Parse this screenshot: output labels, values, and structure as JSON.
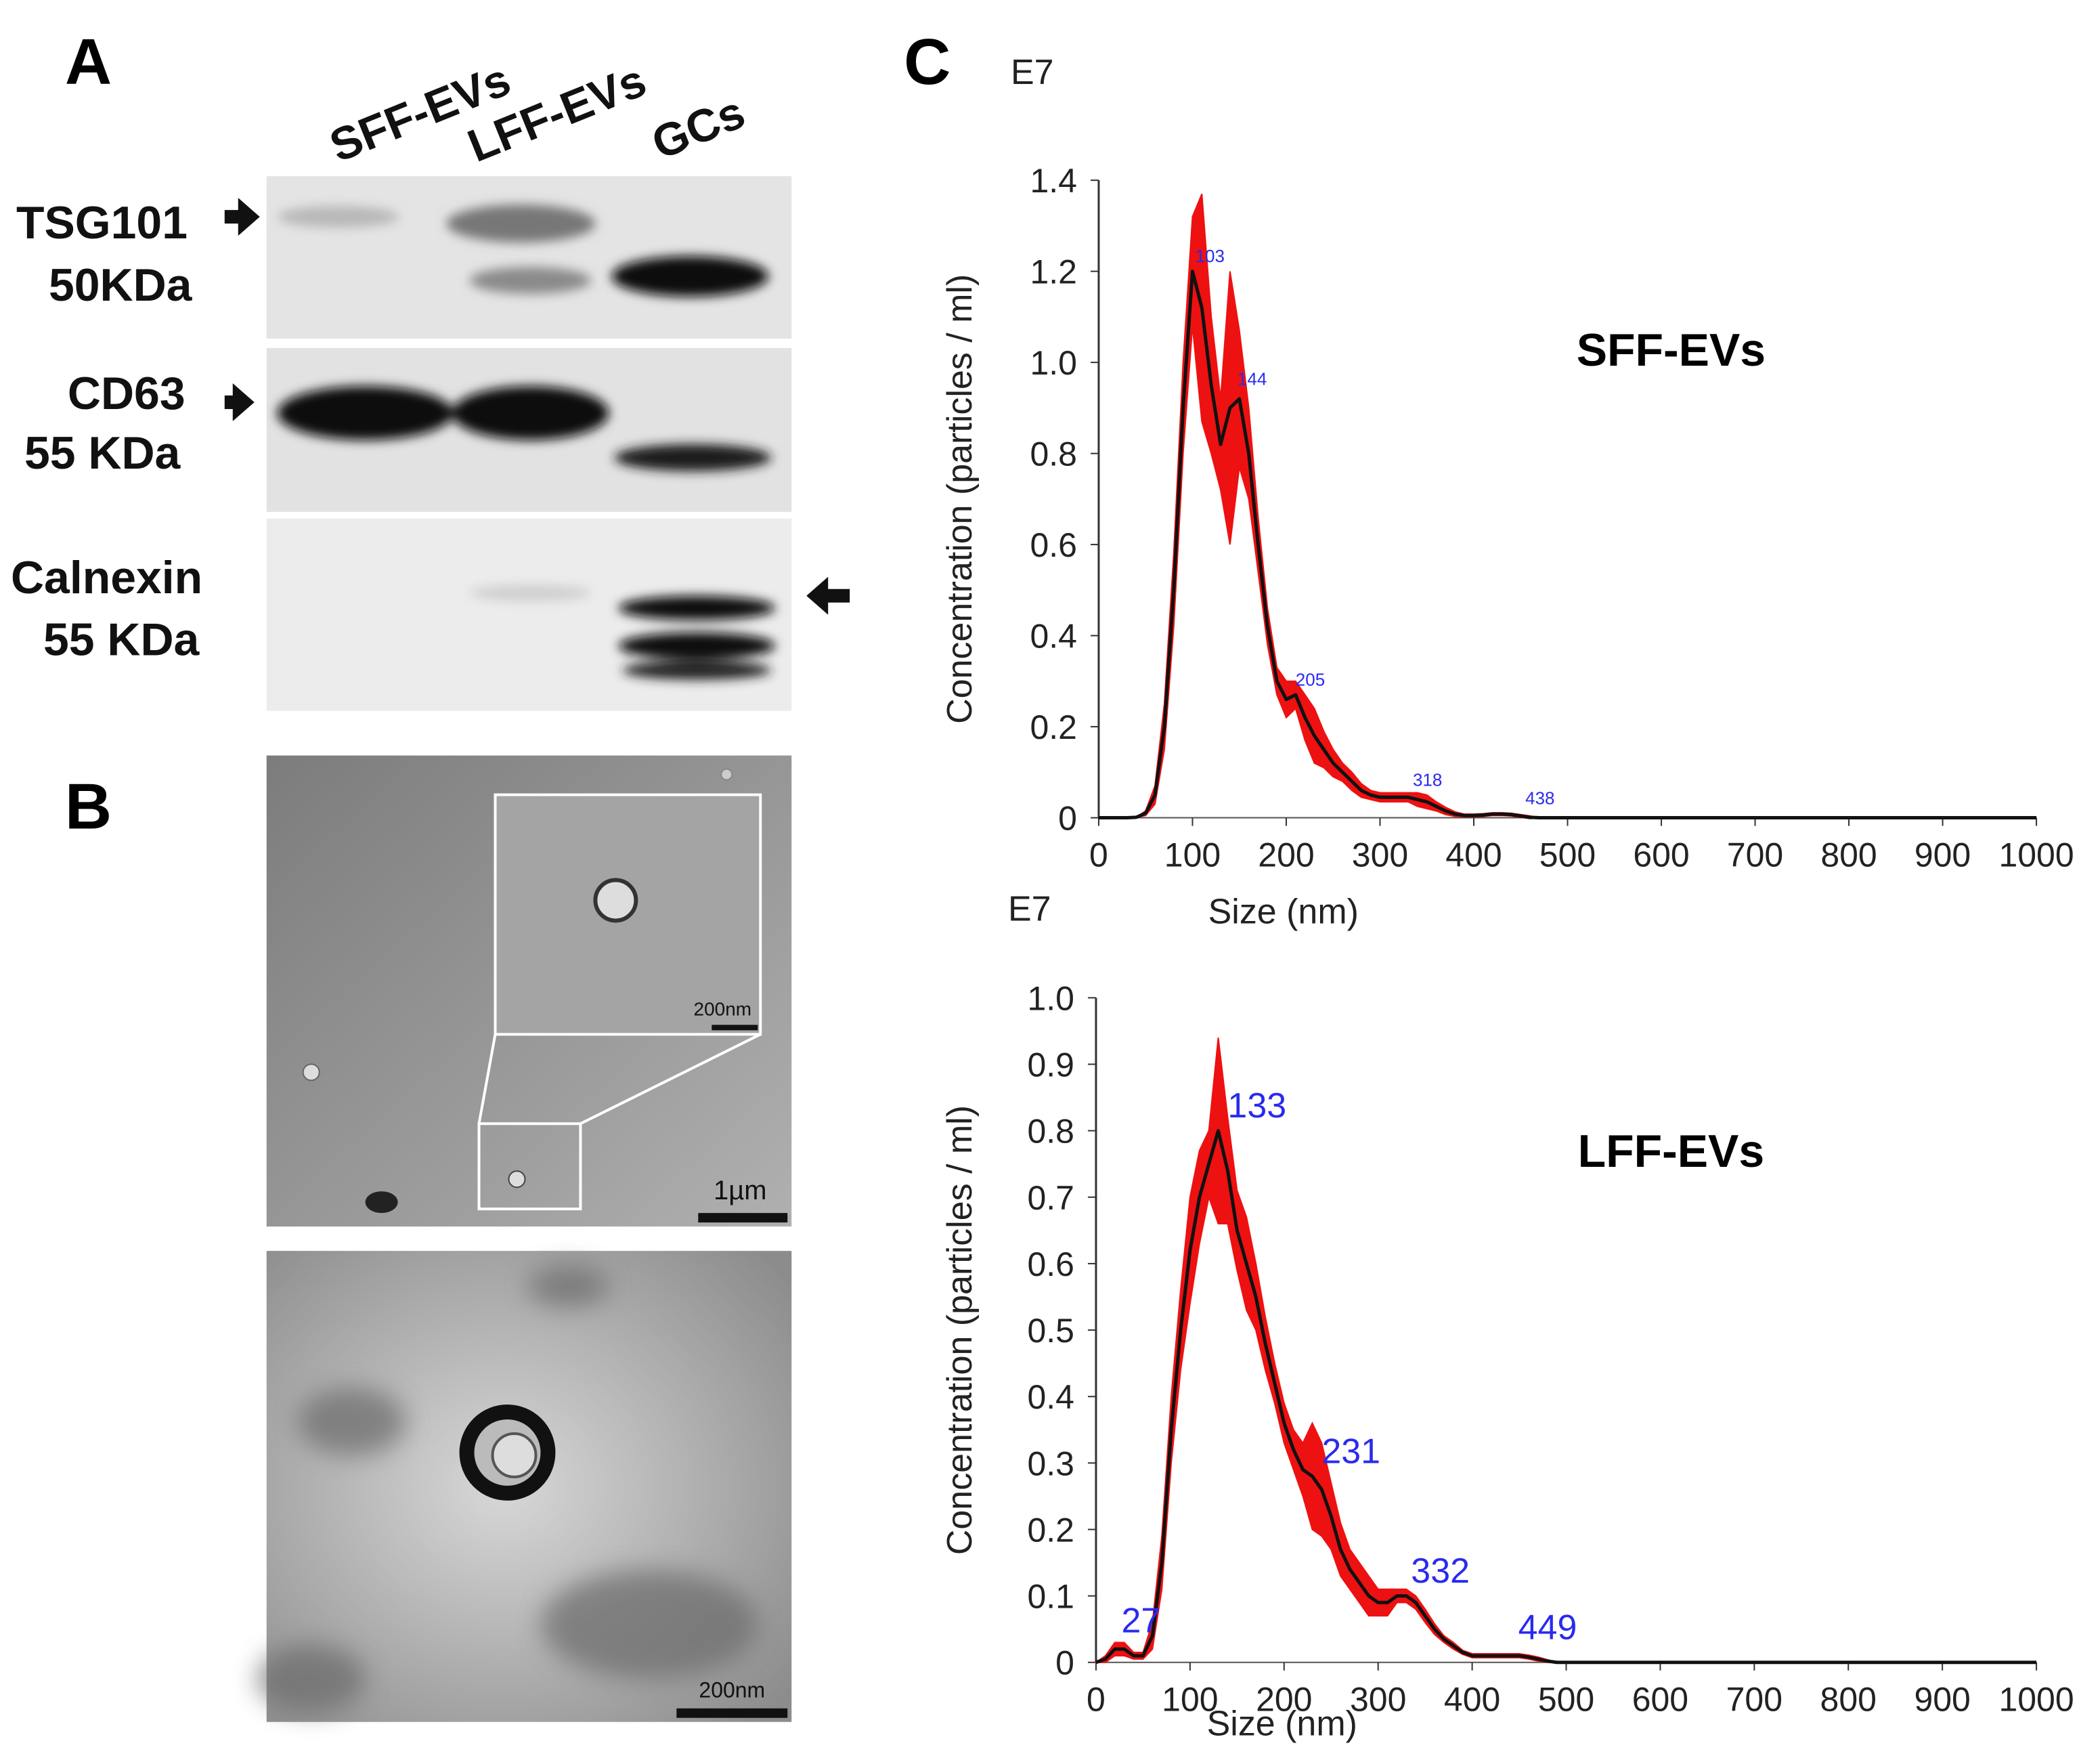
{
  "panel_labels": [
    "A",
    "B",
    "C"
  ],
  "western_blot": {
    "lanes": [
      "SFF-EVs",
      "LFF-EVs",
      "GCs"
    ],
    "markers": [
      {
        "name": "TSG101",
        "size": "50KDa"
      },
      {
        "name": "CD63",
        "size": "55 KDa"
      },
      {
        "name": "Calnexin",
        "size": "55 KDa"
      }
    ]
  },
  "tem": {
    "inset_scale_bar": "200nm",
    "overview_scale_bar": "1µm",
    "closeup_scale_bar": "200nm"
  },
  "chart_data": [
    {
      "type": "line",
      "title": "SFF-EVs",
      "unit_label": "E7",
      "xlabel": "Size (nm)",
      "ylabel": "Concentration (particles / ml)",
      "color": "#111111",
      "band_color": "#ee1111",
      "xlim": [
        0,
        1000
      ],
      "ylim": [
        0,
        1.4
      ],
      "xticks": [
        0,
        100,
        200,
        300,
        400,
        500,
        600,
        700,
        800,
        900,
        1000
      ],
      "yticks": [
        0,
        0.2,
        0.4,
        0.6,
        0.8,
        {
          "value": 1,
          "label": "1.0"
        },
        1.2,
        1.4
      ],
      "x": [
        0,
        10,
        20,
        30,
        40,
        50,
        60,
        70,
        80,
        90,
        100,
        110,
        120,
        130,
        140,
        150,
        160,
        170,
        180,
        190,
        200,
        210,
        220,
        230,
        240,
        250,
        260,
        270,
        280,
        290,
        300,
        310,
        320,
        330,
        340,
        350,
        360,
        370,
        380,
        390,
        400,
        410,
        420,
        430,
        440,
        450,
        460,
        470,
        480,
        490,
        500,
        1000
      ],
      "values": [
        0,
        0,
        0,
        0,
        0.001,
        0.01,
        0.05,
        0.2,
        0.5,
        0.9,
        1.2,
        1.12,
        0.95,
        0.82,
        0.9,
        0.92,
        0.8,
        0.6,
        0.42,
        0.3,
        0.26,
        0.27,
        0.22,
        0.18,
        0.15,
        0.12,
        0.1,
        0.08,
        0.06,
        0.05,
        0.045,
        0.045,
        0.045,
        0.045,
        0.04,
        0.035,
        0.025,
        0.015,
        0.008,
        0.005,
        0.005,
        0.006,
        0.008,
        0.008,
        0.007,
        0.004,
        0.001,
        0,
        0,
        0,
        0,
        0
      ],
      "errors": [
        0,
        0,
        0,
        0,
        0,
        0.005,
        0.02,
        0.05,
        0.08,
        0.1,
        0.12,
        0.25,
        0.15,
        0.1,
        0.3,
        0.15,
        0.1,
        0.06,
        0.04,
        0.03,
        0.04,
        0.03,
        0.05,
        0.06,
        0.04,
        0.03,
        0.02,
        0.02,
        0.015,
        0.01,
        0.01,
        0.01,
        0.01,
        0.01,
        0.015,
        0.015,
        0.01,
        0.008,
        0.005,
        0.003,
        0.003,
        0.003,
        0.003,
        0.003,
        0.003,
        0.003,
        0.003,
        0,
        0,
        0,
        0,
        0
      ],
      "peak_labels": [
        {
          "label": "103",
          "x": 103,
          "y": 1.22
        },
        {
          "label": "144",
          "x": 148,
          "y": 0.95
        },
        {
          "label": "205",
          "x": 210,
          "y": 0.29
        },
        {
          "label": "318",
          "x": 335,
          "y": 0.07
        },
        {
          "label": "438",
          "x": 455,
          "y": 0.03
        }
      ]
    },
    {
      "type": "line",
      "title": "LFF-EVs",
      "unit_label": "E7",
      "xlabel": "Size (nm)",
      "ylabel": "Concentration (particles / ml)",
      "color": "#111111",
      "band_color": "#ee1111",
      "xlim": [
        0,
        1000
      ],
      "ylim": [
        0,
        1
      ],
      "xticks": [
        0,
        100,
        200,
        300,
        400,
        500,
        600,
        700,
        800,
        900,
        1000
      ],
      "yticks": [
        0,
        0.1,
        0.2,
        0.3,
        0.4,
        0.5,
        0.6,
        0.7,
        0.8,
        0.9,
        {
          "value": 1,
          "label": "1.0"
        }
      ],
      "x": [
        0,
        10,
        20,
        30,
        40,
        50,
        60,
        70,
        80,
        90,
        100,
        110,
        120,
        130,
        140,
        150,
        160,
        170,
        180,
        190,
        200,
        210,
        220,
        230,
        240,
        250,
        260,
        270,
        280,
        290,
        300,
        310,
        320,
        330,
        340,
        350,
        360,
        370,
        380,
        390,
        400,
        410,
        420,
        430,
        440,
        450,
        460,
        470,
        480,
        490,
        500,
        1000
      ],
      "values": [
        0,
        0.005,
        0.02,
        0.02,
        0.01,
        0.01,
        0.04,
        0.15,
        0.35,
        0.5,
        0.62,
        0.7,
        0.75,
        0.8,
        0.74,
        0.65,
        0.6,
        0.55,
        0.48,
        0.42,
        0.36,
        0.32,
        0.29,
        0.28,
        0.26,
        0.22,
        0.17,
        0.14,
        0.12,
        0.1,
        0.09,
        0.09,
        0.1,
        0.1,
        0.09,
        0.07,
        0.05,
        0.035,
        0.025,
        0.015,
        0.01,
        0.01,
        0.01,
        0.01,
        0.01,
        0.01,
        0.008,
        0.005,
        0.002,
        0,
        0,
        0
      ],
      "errors": [
        0,
        0.005,
        0.01,
        0.01,
        0.005,
        0.005,
        0.02,
        0.04,
        0.05,
        0.06,
        0.08,
        0.07,
        0.05,
        0.14,
        0.08,
        0.06,
        0.07,
        0.05,
        0.04,
        0.03,
        0.03,
        0.03,
        0.04,
        0.08,
        0.07,
        0.05,
        0.04,
        0.03,
        0.03,
        0.03,
        0.02,
        0.02,
        0.01,
        0.01,
        0.01,
        0.01,
        0.008,
        0.005,
        0.005,
        0.003,
        0.003,
        0.003,
        0.003,
        0.003,
        0.003,
        0.003,
        0.003,
        0.003,
        0.002,
        0,
        0,
        0
      ],
      "peak_labels": [
        {
          "label": "27",
          "x": 27,
          "y": 0.045
        },
        {
          "label": "133",
          "x": 140,
          "y": 0.82
        },
        {
          "label": "231",
          "x": 240,
          "y": 0.3
        },
        {
          "label": "332",
          "x": 335,
          "y": 0.12
        },
        {
          "label": "449",
          "x": 449,
          "y": 0.035
        }
      ]
    }
  ]
}
